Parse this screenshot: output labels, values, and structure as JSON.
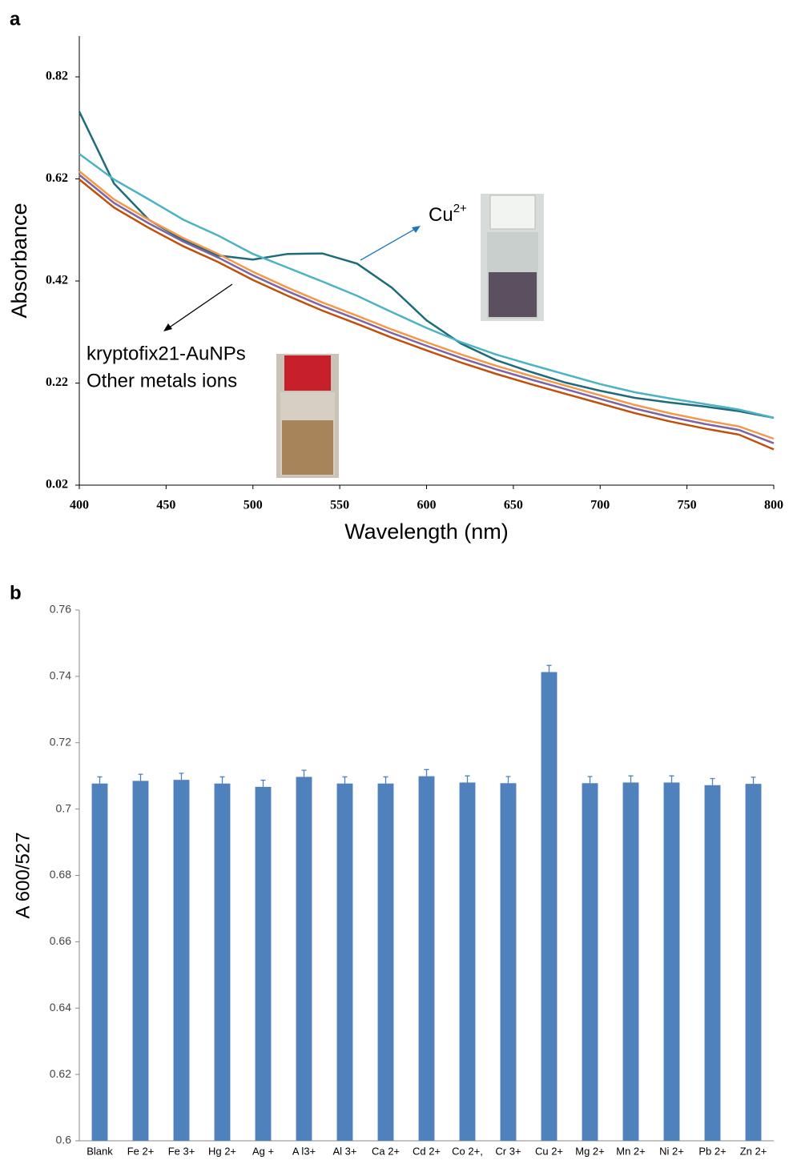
{
  "chart_data": [
    {
      "type": "line",
      "panel_label": "a",
      "x_label": "Wavelength (nm)",
      "y_label": "Absorbance",
      "x": [
        400,
        420,
        440,
        460,
        480,
        500,
        520,
        540,
        560,
        580,
        600,
        620,
        640,
        660,
        680,
        700,
        720,
        740,
        760,
        780,
        800
      ],
      "xlim": [
        400,
        800
      ],
      "xticks": [
        400,
        450,
        500,
        550,
        600,
        650,
        700,
        750,
        800
      ],
      "ylim": [
        0.02,
        0.9
      ],
      "yticks": [
        0.02,
        0.22,
        0.42,
        0.62,
        0.82
      ],
      "series": [
        {
          "color": "#1f6b7a",
          "values": [
            0.752,
            0.611,
            0.54,
            0.5,
            0.47,
            0.462,
            0.473,
            0.474,
            0.454,
            0.407,
            0.343,
            0.297,
            0.265,
            0.242,
            0.221,
            0.205,
            0.191,
            0.182,
            0.174,
            0.165,
            0.152
          ]
        },
        {
          "color": "#4bb3c4",
          "values": [
            0.669,
            0.619,
            0.58,
            0.54,
            0.509,
            0.473,
            0.446,
            0.419,
            0.391,
            0.359,
            0.328,
            0.3,
            0.276,
            0.256,
            0.237,
            0.218,
            0.202,
            0.19,
            0.179,
            0.168,
            0.152
          ]
        },
        {
          "color": "#f39a4a",
          "values": [
            0.635,
            0.58,
            0.54,
            0.504,
            0.473,
            0.438,
            0.407,
            0.378,
            0.352,
            0.325,
            0.3,
            0.276,
            0.254,
            0.234,
            0.215,
            0.196,
            0.177,
            0.161,
            0.147,
            0.135,
            0.111
          ]
        },
        {
          "color": "#8064a2",
          "values": [
            0.628,
            0.573,
            0.533,
            0.497,
            0.466,
            0.431,
            0.4,
            0.371,
            0.345,
            0.318,
            0.293,
            0.269,
            0.247,
            0.227,
            0.208,
            0.189,
            0.17,
            0.154,
            0.14,
            0.128,
            0.102
          ]
        },
        {
          "color": "#c0500a",
          "values": [
            0.619,
            0.564,
            0.524,
            0.488,
            0.457,
            0.422,
            0.391,
            0.362,
            0.336,
            0.309,
            0.284,
            0.26,
            0.238,
            0.218,
            0.199,
            0.18,
            0.161,
            0.145,
            0.131,
            0.119,
            0.09
          ]
        }
      ],
      "annotations": [
        {
          "text": "Cu",
          "superscript": "2+"
        },
        {
          "text": "kryptofix21-AuNPs"
        },
        {
          "text": "Other metals ions"
        }
      ]
    },
    {
      "type": "bar",
      "panel_label": "b",
      "y_label": "A 600/527",
      "color": "#4f81bd",
      "categories": [
        "Blank",
        "Fe 2+",
        "Fe 3+",
        "Hg 2+",
        "Ag +",
        "A l3+",
        "Al 3+",
        "Ca 2+",
        "Cd 2+",
        "Co 2+,",
        "Cr 3+",
        "Cu 2+",
        "Mg 2+",
        "Mn 2+",
        "Ni 2+",
        "Pb 2+",
        "Zn 2+"
      ],
      "values": [
        0.7077,
        0.7085,
        0.7088,
        0.7077,
        0.7067,
        0.7097,
        0.7077,
        0.7077,
        0.7099,
        0.708,
        0.7078,
        0.7413,
        0.7078,
        0.708,
        0.708,
        0.7072,
        0.7076
      ],
      "errors": [
        0.002,
        0.002,
        0.002,
        0.002,
        0.002,
        0.002,
        0.002,
        0.002,
        0.002,
        0.002,
        0.002,
        0.002,
        0.002,
        0.002,
        0.002,
        0.002,
        0.002
      ],
      "ylim": [
        0.6,
        0.76
      ],
      "yticks": [
        0.6,
        0.62,
        0.64,
        0.66,
        0.68,
        0.7,
        0.72,
        0.74,
        0.76
      ]
    }
  ]
}
